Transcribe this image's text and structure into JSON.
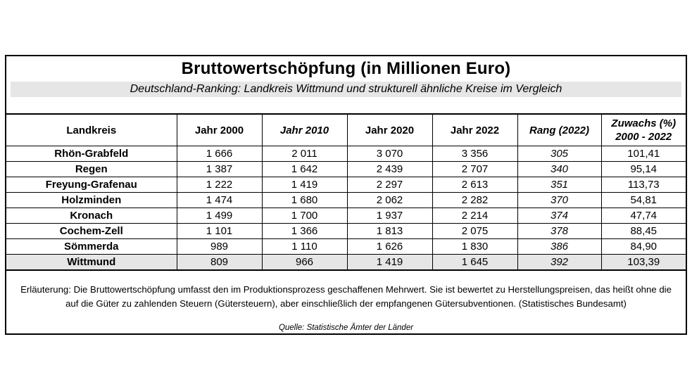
{
  "title": "Bruttowertschöpfung (in Millionen Euro)",
  "subtitle": "Deutschland-Ranking: Landkreis Wittmund und strukturell ähnliche Kreise im Vergleich",
  "columns": [
    "Landkreis",
    "Jahr 2000",
    "Jahr 2010",
    "Jahr 2020",
    "Jahr 2022",
    "Rang (2022)",
    "Zuwachs (%)",
    "2000 - 2022"
  ],
  "rows": [
    {
      "name": "Rhön-Grabfeld",
      "y2000": "1 666",
      "y2010": "2 011",
      "y2020": "3 070",
      "y2022": "3 356",
      "rank": "305",
      "growth": "101,41"
    },
    {
      "name": "Regen",
      "y2000": "1 387",
      "y2010": "1 642",
      "y2020": "2 439",
      "y2022": "2 707",
      "rank": "340",
      "growth": "95,14"
    },
    {
      "name": "Freyung-Grafenau",
      "y2000": "1 222",
      "y2010": "1 419",
      "y2020": "2 297",
      "y2022": "2 613",
      "rank": "351",
      "growth": "113,73"
    },
    {
      "name": "Holzminden",
      "y2000": "1 474",
      "y2010": "1 680",
      "y2020": "2 062",
      "y2022": "2 282",
      "rank": "370",
      "growth": "54,81"
    },
    {
      "name": "Kronach",
      "y2000": "1 499",
      "y2010": "1 700",
      "y2020": "1 937",
      "y2022": "2 214",
      "rank": "374",
      "growth": "47,74"
    },
    {
      "name": "Cochem-Zell",
      "y2000": "1 101",
      "y2010": "1 366",
      "y2020": "1 813",
      "y2022": "2 075",
      "rank": "378",
      "growth": "88,45"
    },
    {
      "name": "Sömmerda",
      "y2000": "989",
      "y2010": "1 110",
      "y2020": "1 626",
      "y2022": "1 830",
      "rank": "386",
      "growth": "84,90"
    },
    {
      "name": "Wittmund",
      "y2000": "809",
      "y2010": "966",
      "y2020": "1 419",
      "y2022": "1 645",
      "rank": "392",
      "growth": "103,39"
    }
  ],
  "note": {
    "label": "Erläuterung:",
    "line1": "Die Bruttowertschöpfung  umfasst  den im Produktionsprozess geschaffenen Mehrwert. Sie ist bewertet zu Herstellungspreisen, das heißt ohne die",
    "line2": "auf die Güter zu zahlenden Steuern (Gütersteuern), aber einschließlich der empfangenen Gütersubventionen.  (Statistisches Bundesamt)"
  },
  "source": "Quelle: Statistische Ämter der Länder",
  "colors": {
    "highlight": "#e6e6e6"
  }
}
